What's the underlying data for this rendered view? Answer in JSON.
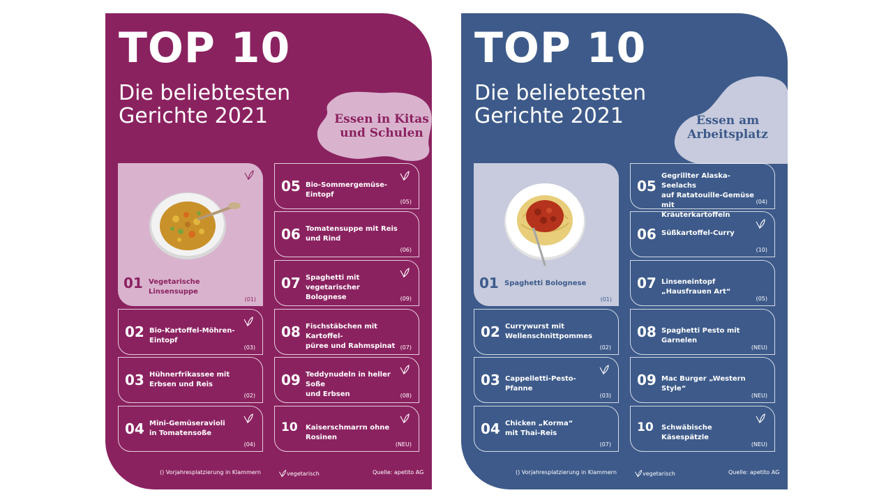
{
  "posters": [
    {
      "id": "kitas",
      "title": "TOP 10",
      "subtitle_line1": "Die beliebtesten",
      "subtitle_line2": "Gerichte 2021",
      "category_line1": "Essen in Kitas",
      "category_line2": "und Schulen",
      "bg_color": "#8b2260",
      "items": [
        {
          "rank": "01",
          "dish_line1": "Vegetarische Linsensuppe",
          "dish_line2": "",
          "previous": "(01)",
          "vegetarian": true
        },
        {
          "rank": "02",
          "dish_line1": "Bio-Kartoffel-Möhren-Eintopf",
          "dish_line2": "",
          "previous": "(03)",
          "vegetarian": true
        },
        {
          "rank": "03",
          "dish_line1": "Hühnerfrikassee mit",
          "dish_line2": "Erbsen und Reis",
          "previous": "(02)",
          "vegetarian": false
        },
        {
          "rank": "04",
          "dish_line1": "Mini-Gemüseravioli",
          "dish_line2": "in Tomatensoße",
          "previous": "(04)",
          "vegetarian": true
        },
        {
          "rank": "05",
          "dish_line1": "Bio-Sommergemüse-Eintopf",
          "dish_line2": "",
          "previous": "(05)",
          "vegetarian": true
        },
        {
          "rank": "06",
          "dish_line1": "Tomatensuppe mit Reis",
          "dish_line2": "und Rind",
          "previous": "(06)",
          "vegetarian": false
        },
        {
          "rank": "07",
          "dish_line1": "Spaghetti mit vegetarischer",
          "dish_line2": "Bolognese",
          "previous": "(09)",
          "vegetarian": true
        },
        {
          "rank": "08",
          "dish_line1": "Fischstäbchen mit Kartoffel-",
          "dish_line2": "püree und Rahmspinat",
          "previous": "(07)",
          "vegetarian": false
        },
        {
          "rank": "09",
          "dish_line1": "Teddynudeln in heller Soße",
          "dish_line2": "und Erbsen",
          "previous": "(08)",
          "vegetarian": true
        },
        {
          "rank": "10",
          "dish_line1": "Kaiserschmarrn ohne Rosinen",
          "dish_line2": "",
          "previous": "(NEU)",
          "vegetarian": true
        }
      ],
      "footer": {
        "legend_previous": "() Vorjahresplatzierung in Klammern",
        "legend_veg": "vegetarisch",
        "source": "Quelle: apetito AG"
      }
    },
    {
      "id": "arbeit",
      "title": "TOP 10",
      "subtitle_line1": "Die beliebtesten",
      "subtitle_line2": "Gerichte 2021",
      "category_line1": "Essen am",
      "category_line2": "Arbeitsplatz",
      "bg_color": "#3d5a8a",
      "items": [
        {
          "rank": "01",
          "dish_line1": "Spaghetti Bolognese",
          "dish_line2": "",
          "previous": "(01)",
          "vegetarian": false
        },
        {
          "rank": "02",
          "dish_line1": "Currywurst mit",
          "dish_line2": "Wellenschnittpommes",
          "previous": "(02)",
          "vegetarian": false
        },
        {
          "rank": "03",
          "dish_line1": "Cappelletti-Pesto-Pfanne",
          "dish_line2": "",
          "previous": "(03)",
          "vegetarian": true
        },
        {
          "rank": "04",
          "dish_line1": "Chicken „Korma“",
          "dish_line2": "mit Thai-Reis",
          "previous": "(07)",
          "vegetarian": false
        },
        {
          "rank": "05",
          "dish_line1": "Gegrillter Alaska-Seelachs",
          "dish_line2": "auf Ratatouille-Gemüse mit",
          "dish_line3": "Kräuterkartoffeln",
          "previous": "(04)",
          "vegetarian": false
        },
        {
          "rank": "06",
          "dish_line1": "Süßkartoffel-Curry",
          "dish_line2": "",
          "previous": "(10)",
          "vegetarian": true
        },
        {
          "rank": "07",
          "dish_line1": "Linseneintopf „Hausfrauen Art“",
          "dish_line2": "",
          "previous": "(05)",
          "vegetarian": false
        },
        {
          "rank": "08",
          "dish_line1": "Spaghetti Pesto mit Garnelen",
          "dish_line2": "",
          "previous": "(NEU)",
          "vegetarian": false
        },
        {
          "rank": "09",
          "dish_line1": "Mac Burger „Western Style“",
          "dish_line2": "",
          "previous": "(NEU)",
          "vegetarian": false
        },
        {
          "rank": "10",
          "dish_line1": "Schwäbische Käsespätzle",
          "dish_line2": "",
          "previous": "(NEU)",
          "vegetarian": true
        }
      ],
      "footer": {
        "legend_previous": "() Vorjahresplatzierung in Klammern",
        "legend_veg": "vegetarisch",
        "source": "Quelle: apetito AG"
      }
    }
  ],
  "icons": {
    "vegetarian": "leaf-v-icon",
    "soup": "soup-bowl-image",
    "pasta": "spaghetti-plate-image"
  }
}
